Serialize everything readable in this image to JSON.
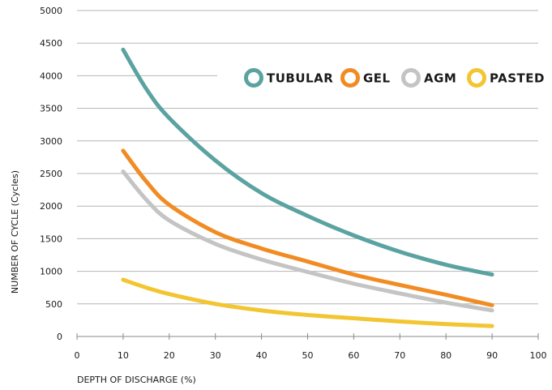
{
  "chart_data": {
    "type": "line",
    "xlabel": "DEPTH OF DISCHARGE (%)",
    "ylabel": "NUMBER OF CYCLE (Cycles)",
    "xlim": [
      0,
      100
    ],
    "ylim": [
      0,
      5000
    ],
    "xticks": [
      "0",
      "10",
      "20",
      "30",
      "40",
      "50",
      "60",
      "70",
      "80",
      "90",
      "100"
    ],
    "yticks": [
      "0",
      "500",
      "1000",
      "1500",
      "2000",
      "2500",
      "3000",
      "3500",
      "4000",
      "4500",
      "5000"
    ],
    "grid": "horizontal",
    "legend_position": "top-right",
    "series": [
      {
        "name": "TUBULAR",
        "color": "#5ba3a0",
        "x": [
          10,
          15,
          20,
          30,
          40,
          50,
          60,
          70,
          80,
          90
        ],
        "y": [
          4400,
          3800,
          3350,
          2700,
          2200,
          1850,
          1550,
          1300,
          1100,
          950
        ]
      },
      {
        "name": "GEL",
        "color": "#f08c23",
        "x": [
          10,
          15,
          20,
          30,
          40,
          50,
          60,
          70,
          80,
          90
        ],
        "y": [
          2850,
          2380,
          2020,
          1600,
          1350,
          1150,
          950,
          790,
          640,
          480
        ]
      },
      {
        "name": "AGM",
        "color": "#c4c4c4",
        "x": [
          10,
          15,
          20,
          30,
          40,
          50,
          60,
          70,
          80,
          90
        ],
        "y": [
          2530,
          2100,
          1780,
          1420,
          1180,
          990,
          810,
          660,
          520,
          400
        ]
      },
      {
        "name": "PASTED",
        "color": "#f2c531",
        "x": [
          10,
          15,
          20,
          30,
          40,
          50,
          60,
          70,
          80,
          90
        ],
        "y": [
          870,
          750,
          650,
          500,
          400,
          330,
          280,
          230,
          190,
          160
        ]
      }
    ]
  }
}
